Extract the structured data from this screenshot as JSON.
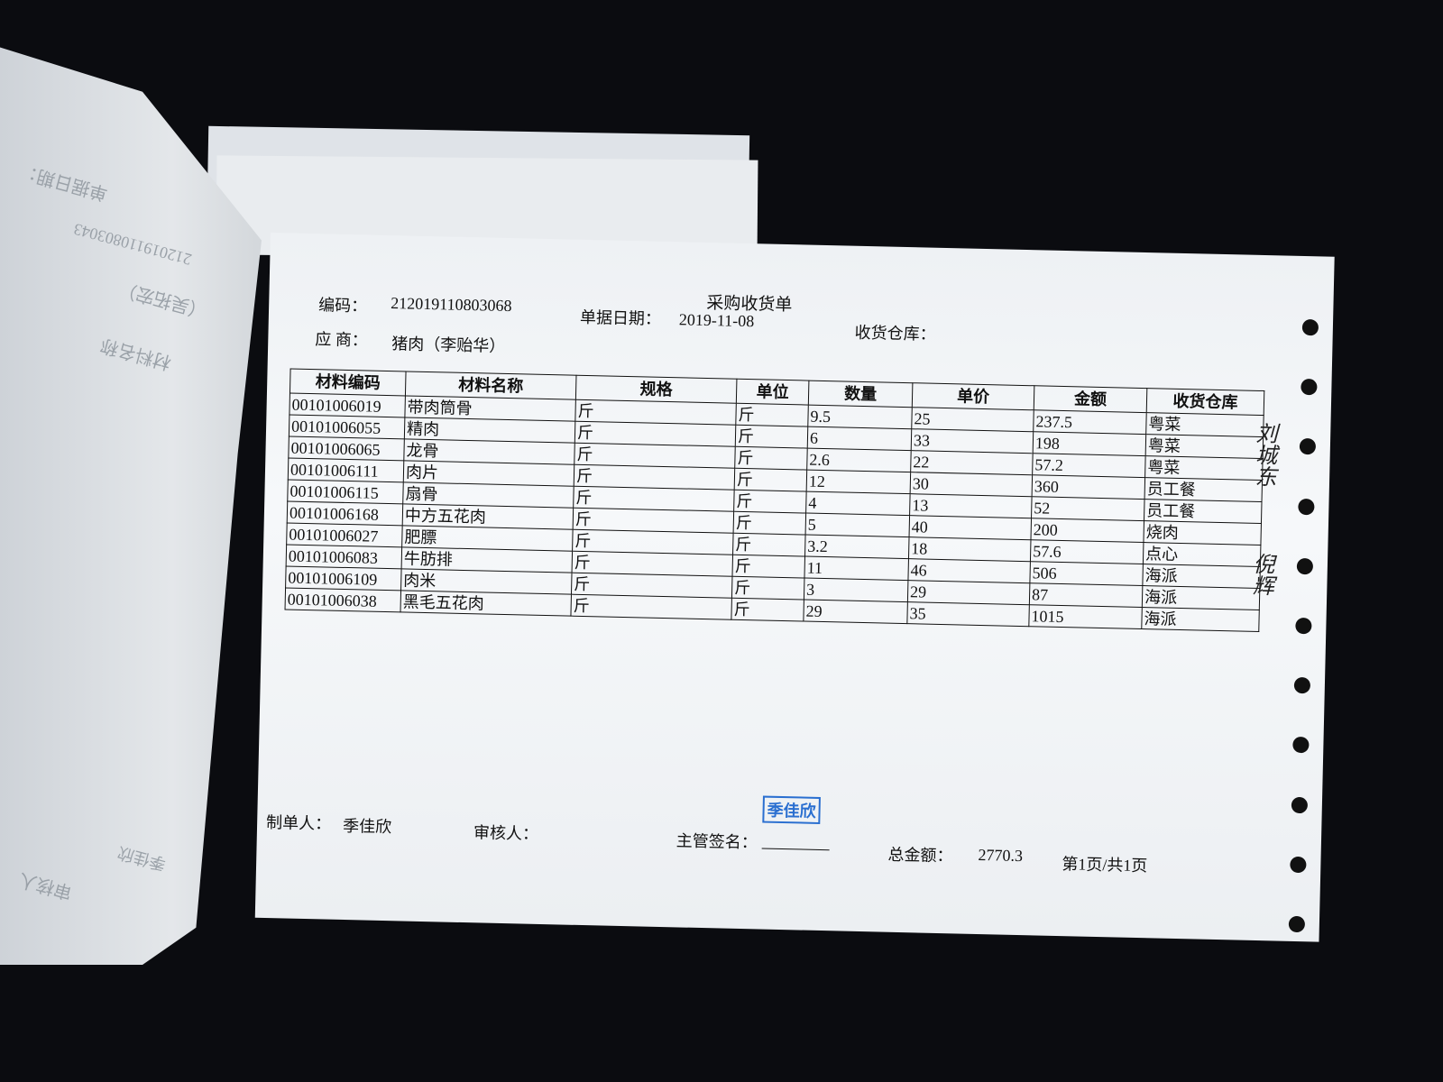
{
  "document": {
    "title": "采购收货单",
    "code_label": "编码：",
    "code_value": "212019110803068",
    "date_label": "单据日期：",
    "date_value": "2019-11-08",
    "warehouse_label": "收货仓库：",
    "supplier_label": "应 商：",
    "supplier_value": "猪肉（李贻华）",
    "columns": [
      "材料编码",
      "材料名称",
      "规格",
      "单位",
      "数量",
      "单价",
      "金额",
      "收货仓库"
    ],
    "rows": [
      [
        "00101006019",
        "带肉筒骨",
        "斤",
        "斤",
        "9.5",
        "25",
        "237.5",
        "粤菜"
      ],
      [
        "00101006055",
        "精肉",
        "斤",
        "斤",
        "6",
        "33",
        "198",
        "粤菜"
      ],
      [
        "00101006065",
        "龙骨",
        "斤",
        "斤",
        "2.6",
        "22",
        "57.2",
        "粤菜"
      ],
      [
        "00101006111",
        "肉片",
        "斤",
        "斤",
        "12",
        "30",
        "360",
        "员工餐"
      ],
      [
        "00101006115",
        "扇骨",
        "斤",
        "斤",
        "4",
        "13",
        "52",
        "员工餐"
      ],
      [
        "00101006168",
        "中方五花肉",
        "斤",
        "斤",
        "5",
        "40",
        "200",
        "烧肉"
      ],
      [
        "00101006027",
        "肥膘",
        "斤",
        "斤",
        "3.2",
        "18",
        "57.6",
        "点心"
      ],
      [
        "00101006083",
        "牛肪排",
        "斤",
        "斤",
        "11",
        "46",
        "506",
        "海派"
      ],
      [
        "00101006109",
        "肉米",
        "斤",
        "斤",
        "3",
        "29",
        "87",
        "海派"
      ],
      [
        "00101006038",
        "黑毛五花肉",
        "斤",
        "斤",
        "29",
        "35",
        "1015",
        "海派"
      ]
    ],
    "maker_label": "制单人：",
    "maker_value": "季佳欣",
    "reviewer_label": "审核人：",
    "supervisor_label": "主管签名：",
    "stamp_text": "季佳欣",
    "total_label": "总金额：",
    "total_value": "2770.3",
    "page_info": "第1页/共1页"
  },
  "background_page": {
    "date_label": "单据日期：",
    "code": "212019110803043",
    "supplier": "（吴拓宏）",
    "name_header": "材料名称",
    "reviewer_label": "审核人",
    "maker": "季佳欣"
  },
  "colors": {
    "stamp": "#2a6fd0",
    "background": "#0b0c10",
    "paper": "#f2f4f6"
  }
}
